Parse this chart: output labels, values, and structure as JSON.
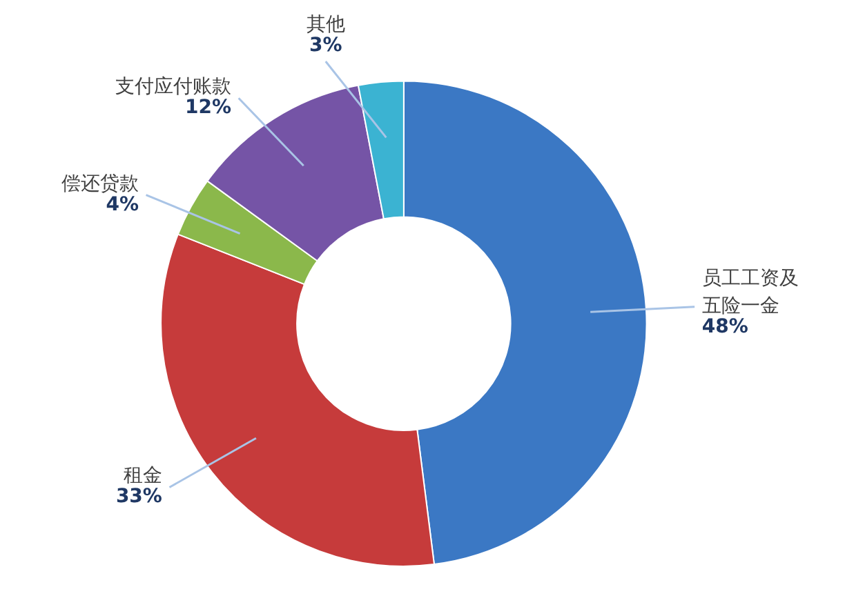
{
  "chart_data": {
    "type": "donut",
    "categories": [
      "员工工资及五险一金",
      "租金",
      "偿还贷款",
      "支付应付账款",
      "其他"
    ],
    "values": [
      48,
      33,
      4,
      12,
      3
    ],
    "value_labels": [
      "48%",
      "33%",
      "4%",
      "12%",
      "3%"
    ],
    "colors": [
      "#3b78c4",
      "#c63b3b",
      "#8bb84b",
      "#7554a6",
      "#3bb3d2"
    ]
  }
}
